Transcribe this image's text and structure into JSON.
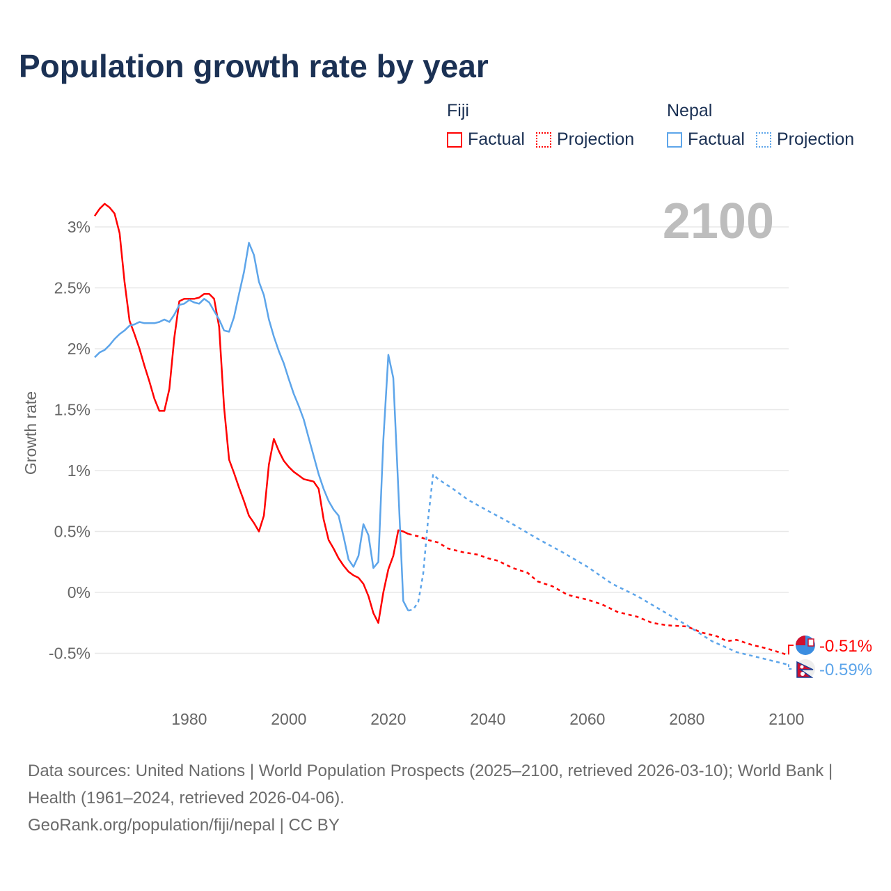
{
  "title": "Population growth rate by year",
  "legend": {
    "groups": [
      {
        "name": "Fiji",
        "items": [
          {
            "label": "Factual",
            "style": "solid"
          },
          {
            "label": "Projection",
            "style": "dotted"
          }
        ],
        "color": "#ff0000"
      },
      {
        "name": "Nepal",
        "items": [
          {
            "label": "Factual",
            "style": "solid"
          },
          {
            "label": "Projection",
            "style": "dotted"
          }
        ],
        "color": "#5da5ea"
      }
    ]
  },
  "year_display": "2100",
  "footer": {
    "sources": "Data sources: United Nations | World Population Prospects (2025–2100, retrieved 2026-03-10); World Bank | Health (1961–2024, retrieved 2026-04-06).",
    "credit": "GeoRank.org/population/fiji/nepal | CC BY"
  },
  "chart_data": {
    "type": "line",
    "title": "Population growth rate by year",
    "xlabel": "",
    "ylabel": "Growth rate",
    "xlim": [
      1961,
      2100
    ],
    "ylim": [
      -0.9,
      3.3
    ],
    "x_ticks": [
      1980,
      2000,
      2020,
      2040,
      2060,
      2080,
      2100
    ],
    "y_ticks": [
      -0.5,
      0,
      0.5,
      1,
      1.5,
      2,
      2.5,
      3
    ],
    "y_tick_labels": [
      "-0.5%",
      "0%",
      "0.5%",
      "1%",
      "1.5%",
      "2%",
      "2.5%",
      "3%"
    ],
    "x_tick_labels": [
      "1980",
      "2000",
      "2020",
      "2040",
      "2060",
      "2080",
      "2100"
    ],
    "grid": true,
    "legend_position": "top-right",
    "series": [
      {
        "name": "Fiji Factual",
        "color": "#ff0000",
        "dashed": false,
        "x": [
          1961,
          1962,
          1963,
          1964,
          1965,
          1966,
          1967,
          1968,
          1969,
          1970,
          1971,
          1972,
          1973,
          1974,
          1975,
          1976,
          1977,
          1978,
          1979,
          1980,
          1981,
          1982,
          1983,
          1984,
          1985,
          1986,
          1987,
          1988,
          1989,
          1990,
          1991,
          1992,
          1993,
          1994,
          1995,
          1996,
          1997,
          1998,
          1999,
          2000,
          2001,
          2002,
          2003,
          2004,
          2005,
          2006,
          2007,
          2008,
          2009,
          2010,
          2011,
          2012,
          2013,
          2014,
          2015,
          2016,
          2017,
          2018,
          2019,
          2020,
          2021,
          2022,
          2023,
          2024
        ],
        "y": [
          3.09,
          3.15,
          3.19,
          3.16,
          3.11,
          2.95,
          2.55,
          2.23,
          2.12,
          2.0,
          1.86,
          1.73,
          1.59,
          1.49,
          1.49,
          1.67,
          2.09,
          2.39,
          2.41,
          2.41,
          2.41,
          2.42,
          2.45,
          2.45,
          2.41,
          2.18,
          1.52,
          1.09,
          0.98,
          0.86,
          0.75,
          0.63,
          0.57,
          0.5,
          0.63,
          1.05,
          1.26,
          1.16,
          1.08,
          1.03,
          0.99,
          0.96,
          0.93,
          0.92,
          0.91,
          0.85,
          0.6,
          0.43,
          0.36,
          0.28,
          0.22,
          0.17,
          0.14,
          0.12,
          0.07,
          -0.03,
          -0.17,
          -0.25,
          0.0,
          0.19,
          0.3,
          0.51,
          0.5,
          0.48
        ]
      },
      {
        "name": "Fiji Projection",
        "color": "#ff0000",
        "dashed": true,
        "x": [
          2024,
          2026,
          2028,
          2030,
          2032,
          2035,
          2038,
          2040,
          2042,
          2045,
          2048,
          2050,
          2053,
          2056,
          2060,
          2063,
          2066,
          2070,
          2073,
          2076,
          2080,
          2083,
          2086,
          2088,
          2090,
          2093,
          2096,
          2100
        ],
        "y": [
          0.48,
          0.46,
          0.43,
          0.41,
          0.36,
          0.33,
          0.31,
          0.28,
          0.26,
          0.2,
          0.16,
          0.09,
          0.05,
          -0.02,
          -0.06,
          -0.1,
          -0.16,
          -0.2,
          -0.25,
          -0.27,
          -0.28,
          -0.33,
          -0.36,
          -0.4,
          -0.39,
          -0.43,
          -0.46,
          -0.51
        ]
      },
      {
        "name": "Nepal Factual",
        "color": "#5da5ea",
        "dashed": false,
        "x": [
          1961,
          1962,
          1963,
          1964,
          1965,
          1966,
          1967,
          1968,
          1969,
          1970,
          1971,
          1972,
          1973,
          1974,
          1975,
          1976,
          1977,
          1978,
          1979,
          1980,
          1981,
          1982,
          1983,
          1984,
          1985,
          1986,
          1987,
          1988,
          1989,
          1990,
          1991,
          1992,
          1993,
          1994,
          1995,
          1996,
          1997,
          1998,
          1999,
          2000,
          2001,
          2002,
          2003,
          2004,
          2005,
          2006,
          2007,
          2008,
          2009,
          2010,
          2011,
          2012,
          2013,
          2014,
          2015,
          2016,
          2017,
          2018,
          2019,
          2020,
          2021,
          2022,
          2023,
          2024
        ],
        "y": [
          1.93,
          1.97,
          1.99,
          2.03,
          2.08,
          2.12,
          2.15,
          2.19,
          2.2,
          2.22,
          2.21,
          2.21,
          2.21,
          2.22,
          2.24,
          2.22,
          2.28,
          2.36,
          2.37,
          2.4,
          2.38,
          2.37,
          2.41,
          2.38,
          2.31,
          2.24,
          2.15,
          2.14,
          2.26,
          2.45,
          2.63,
          2.87,
          2.77,
          2.55,
          2.44,
          2.24,
          2.1,
          1.98,
          1.88,
          1.75,
          1.63,
          1.53,
          1.42,
          1.27,
          1.12,
          0.97,
          0.85,
          0.75,
          0.68,
          0.63,
          0.46,
          0.27,
          0.21,
          0.3,
          0.56,
          0.47,
          0.2,
          0.25,
          1.25,
          1.95,
          1.76,
          0.85,
          -0.07,
          -0.15
        ]
      },
      {
        "name": "Nepal Projection",
        "color": "#5da5ea",
        "dashed": true,
        "x": [
          2024,
          2025,
          2026,
          2027,
          2028,
          2029,
          2030,
          2033,
          2036,
          2040,
          2045,
          2050,
          2055,
          2060,
          2065,
          2070,
          2075,
          2080,
          2085,
          2090,
          2095,
          2100
        ],
        "y": [
          -0.15,
          -0.14,
          -0.08,
          0.15,
          0.6,
          0.97,
          0.93,
          0.85,
          0.76,
          0.67,
          0.56,
          0.44,
          0.33,
          0.21,
          0.07,
          -0.03,
          -0.15,
          -0.27,
          -0.4,
          -0.49,
          -0.54,
          -0.59
        ]
      }
    ],
    "end_labels": [
      {
        "series": "Fiji",
        "value": -0.51,
        "label": "-0.51%",
        "color": "#ff0000"
      },
      {
        "series": "Nepal",
        "value": -0.59,
        "label": "-0.59%",
        "color": "#5da5ea"
      }
    ]
  }
}
